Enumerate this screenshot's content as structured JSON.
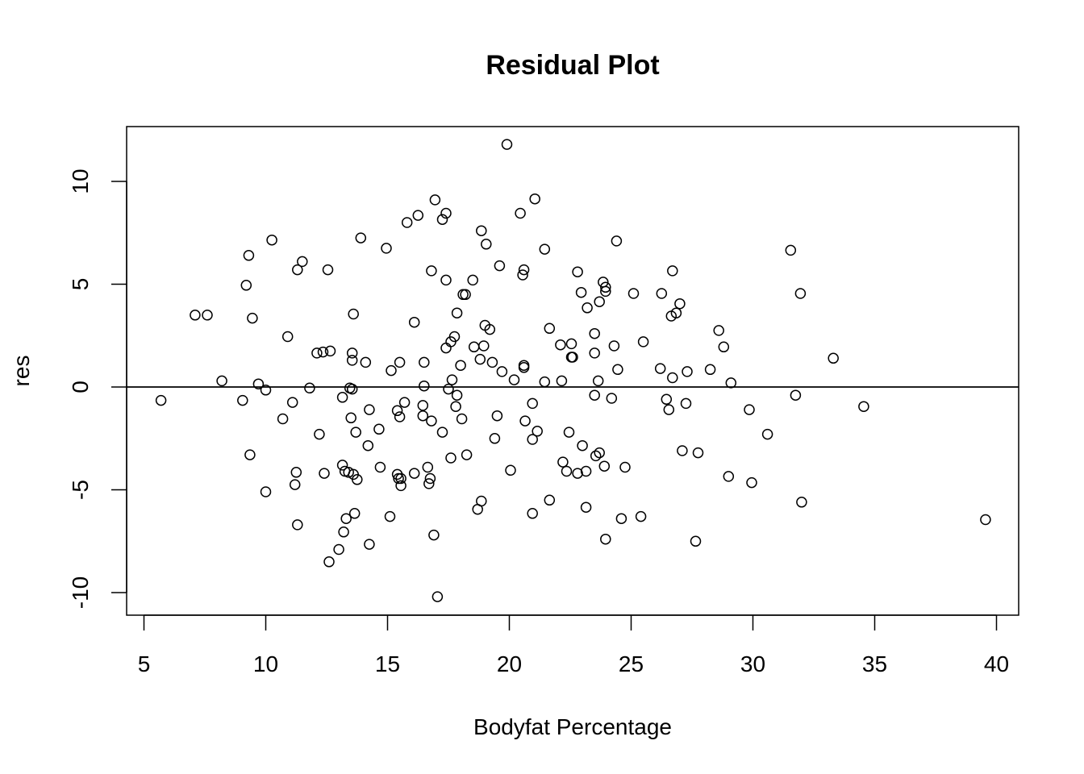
{
  "chart_data": {
    "type": "scatter",
    "title": "Residual Plot",
    "xlabel": "Bodyfat Percentage",
    "ylabel": "res",
    "xlim": [
      4.5,
      41
    ],
    "ylim": [
      -11.2,
      12.5
    ],
    "xticks": [
      5,
      10,
      15,
      20,
      25,
      30,
      35,
      40
    ],
    "yticks": [
      -10,
      -5,
      0,
      5,
      10
    ],
    "hline": 0,
    "grid": false,
    "legend": "none",
    "marker": "open-circle",
    "color": "#000000",
    "points": [
      [
        5.7,
        -0.65
      ],
      [
        7.1,
        3.5
      ],
      [
        7.6,
        3.5
      ],
      [
        8.2,
        0.3
      ],
      [
        9.05,
        -0.65
      ],
      [
        9.2,
        4.95
      ],
      [
        9.3,
        6.4
      ],
      [
        9.35,
        -3.3
      ],
      [
        9.45,
        3.35
      ],
      [
        9.7,
        0.15
      ],
      [
        10.0,
        -0.15
      ],
      [
        10.0,
        -5.1
      ],
      [
        10.25,
        7.15
      ],
      [
        10.7,
        -1.55
      ],
      [
        10.9,
        2.45
      ],
      [
        11.1,
        -0.75
      ],
      [
        11.2,
        -4.75
      ],
      [
        11.25,
        -4.15
      ],
      [
        11.3,
        5.7
      ],
      [
        11.3,
        -6.7
      ],
      [
        11.5,
        6.1
      ],
      [
        11.8,
        -0.05
      ],
      [
        12.1,
        1.65
      ],
      [
        12.2,
        -2.3
      ],
      [
        12.35,
        1.7
      ],
      [
        12.4,
        -4.2
      ],
      [
        12.55,
        5.7
      ],
      [
        12.65,
        1.75
      ],
      [
        12.6,
        -8.5
      ],
      [
        13.0,
        -7.9
      ],
      [
        13.15,
        -0.5
      ],
      [
        13.15,
        -3.8
      ],
      [
        13.2,
        -7.05
      ],
      [
        13.25,
        -4.1
      ],
      [
        13.3,
        -6.4
      ],
      [
        13.4,
        -4.15
      ],
      [
        13.45,
        -0.05
      ],
      [
        13.5,
        -1.5
      ],
      [
        13.55,
        1.65
      ],
      [
        13.55,
        1.3
      ],
      [
        13.55,
        -0.1
      ],
      [
        13.6,
        3.55
      ],
      [
        13.6,
        -4.25
      ],
      [
        13.65,
        -6.15
      ],
      [
        13.7,
        -2.2
      ],
      [
        13.75,
        -4.5
      ],
      [
        13.9,
        7.25
      ],
      [
        14.1,
        1.2
      ],
      [
        14.2,
        -2.85
      ],
      [
        14.25,
        -7.65
      ],
      [
        14.25,
        -1.1
      ],
      [
        14.65,
        -2.05
      ],
      [
        14.7,
        -3.9
      ],
      [
        14.95,
        6.75
      ],
      [
        15.1,
        -6.3
      ],
      [
        15.15,
        0.8
      ],
      [
        15.4,
        -1.15
      ],
      [
        15.4,
        -4.25
      ],
      [
        15.45,
        -4.45
      ],
      [
        15.5,
        -1.45
      ],
      [
        15.5,
        1.2
      ],
      [
        15.55,
        -4.45
      ],
      [
        15.55,
        -4.8
      ],
      [
        15.7,
        -0.75
      ],
      [
        15.8,
        8.0
      ],
      [
        16.1,
        3.15
      ],
      [
        16.1,
        -4.2
      ],
      [
        16.25,
        8.35
      ],
      [
        16.45,
        -0.9
      ],
      [
        16.45,
        -1.4
      ],
      [
        16.5,
        0.05
      ],
      [
        16.5,
        1.2
      ],
      [
        16.65,
        -3.9
      ],
      [
        16.7,
        -4.7
      ],
      [
        16.75,
        -4.45
      ],
      [
        16.8,
        -1.65
      ],
      [
        16.8,
        5.65
      ],
      [
        16.9,
        -7.2
      ],
      [
        16.95,
        9.1
      ],
      [
        17.05,
        -10.2
      ],
      [
        17.25,
        8.15
      ],
      [
        17.25,
        -2.2
      ],
      [
        17.4,
        5.2
      ],
      [
        17.4,
        8.45
      ],
      [
        17.4,
        1.9
      ],
      [
        17.5,
        -0.1
      ],
      [
        17.6,
        2.2
      ],
      [
        17.6,
        -3.45
      ],
      [
        17.65,
        0.35
      ],
      [
        17.75,
        2.45
      ],
      [
        17.8,
        -0.95
      ],
      [
        17.85,
        3.6
      ],
      [
        17.85,
        -0.4
      ],
      [
        18.0,
        1.05
      ],
      [
        18.05,
        -1.55
      ],
      [
        18.1,
        4.5
      ],
      [
        18.2,
        4.5
      ],
      [
        18.25,
        -3.3
      ],
      [
        18.5,
        5.2
      ],
      [
        18.55,
        1.95
      ],
      [
        18.7,
        -5.95
      ],
      [
        18.8,
        1.35
      ],
      [
        18.85,
        7.6
      ],
      [
        18.85,
        -5.55
      ],
      [
        18.95,
        2.0
      ],
      [
        19.0,
        3.0
      ],
      [
        19.05,
        6.95
      ],
      [
        19.2,
        2.8
      ],
      [
        19.3,
        1.2
      ],
      [
        19.4,
        -2.5
      ],
      [
        19.5,
        -1.4
      ],
      [
        19.6,
        5.9
      ],
      [
        19.7,
        0.75
      ],
      [
        19.9,
        11.8
      ],
      [
        20.05,
        -4.05
      ],
      [
        20.2,
        0.35
      ],
      [
        20.45,
        8.45
      ],
      [
        20.55,
        5.45
      ],
      [
        20.6,
        5.7
      ],
      [
        20.6,
        1.05
      ],
      [
        20.6,
        0.95
      ],
      [
        20.65,
        -1.65
      ],
      [
        20.95,
        -0.8
      ],
      [
        20.95,
        -2.55
      ],
      [
        20.95,
        -6.15
      ],
      [
        21.05,
        9.15
      ],
      [
        21.15,
        -2.15
      ],
      [
        21.45,
        0.25
      ],
      [
        21.45,
        6.7
      ],
      [
        21.65,
        -5.5
      ],
      [
        21.65,
        2.85
      ],
      [
        22.1,
        2.05
      ],
      [
        22.15,
        0.3
      ],
      [
        22.2,
        -3.65
      ],
      [
        22.35,
        -4.1
      ],
      [
        22.45,
        -2.2
      ],
      [
        22.55,
        2.1
      ],
      [
        22.55,
        1.45
      ],
      [
        22.6,
        1.45
      ],
      [
        22.8,
        5.6
      ],
      [
        22.8,
        -4.2
      ],
      [
        22.95,
        4.6
      ],
      [
        23.0,
        -2.85
      ],
      [
        23.15,
        -4.1
      ],
      [
        23.15,
        -5.85
      ],
      [
        23.2,
        3.85
      ],
      [
        23.5,
        1.65
      ],
      [
        23.5,
        2.6
      ],
      [
        23.5,
        -0.4
      ],
      [
        23.55,
        -3.35
      ],
      [
        23.65,
        0.3
      ],
      [
        23.7,
        4.15
      ],
      [
        23.7,
        -3.2
      ],
      [
        23.85,
        5.1
      ],
      [
        23.9,
        -3.85
      ],
      [
        23.95,
        4.85
      ],
      [
        23.95,
        -7.4
      ],
      [
        23.95,
        4.65
      ],
      [
        24.2,
        -0.55
      ],
      [
        24.3,
        2.0
      ],
      [
        24.4,
        7.1
      ],
      [
        24.45,
        0.85
      ],
      [
        24.6,
        -6.4
      ],
      [
        24.75,
        -3.9
      ],
      [
        25.1,
        4.55
      ],
      [
        25.4,
        -6.3
      ],
      [
        25.5,
        2.2
      ],
      [
        26.2,
        0.9
      ],
      [
        26.25,
        4.55
      ],
      [
        26.45,
        -0.6
      ],
      [
        26.55,
        -1.1
      ],
      [
        26.65,
        3.45
      ],
      [
        26.7,
        5.65
      ],
      [
        26.7,
        0.45
      ],
      [
        26.85,
        3.6
      ],
      [
        27.0,
        4.05
      ],
      [
        27.1,
        -3.1
      ],
      [
        27.25,
        -0.8
      ],
      [
        27.3,
        0.75
      ],
      [
        27.65,
        -7.5
      ],
      [
        27.75,
        -3.2
      ],
      [
        28.25,
        0.85
      ],
      [
        28.6,
        2.75
      ],
      [
        28.8,
        1.95
      ],
      [
        29.0,
        -4.35
      ],
      [
        29.1,
        0.2
      ],
      [
        29.85,
        -1.1
      ],
      [
        29.95,
        -4.65
      ],
      [
        30.6,
        -2.3
      ],
      [
        31.55,
        6.65
      ],
      [
        31.75,
        -0.4
      ],
      [
        31.95,
        4.55
      ],
      [
        32.0,
        -5.6
      ],
      [
        33.3,
        1.4
      ],
      [
        34.55,
        -0.95
      ],
      [
        39.55,
        -6.45
      ]
    ]
  }
}
